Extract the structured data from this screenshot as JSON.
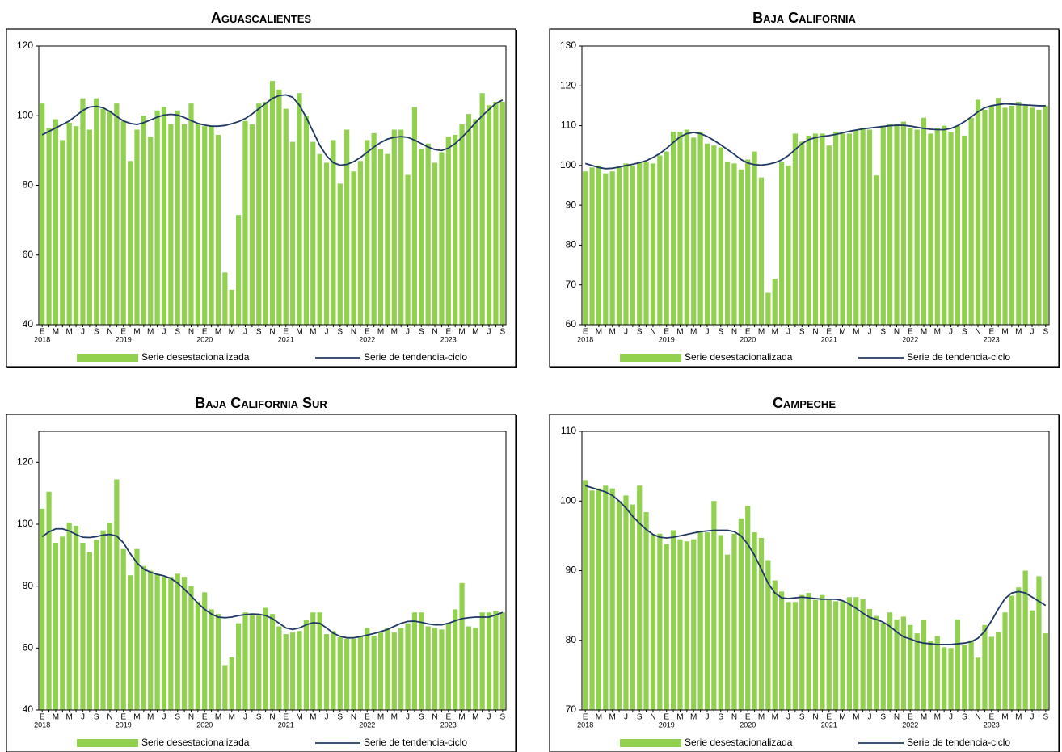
{
  "chart_data": [
    {
      "type": "bar",
      "title": "Aguascalientes",
      "categories": [
        "E",
        null,
        "M",
        null,
        "M",
        null,
        "J",
        null,
        "S",
        null,
        "N",
        null,
        "E",
        null,
        "M",
        null,
        "M",
        null,
        "J",
        null,
        "S",
        null,
        "N",
        null,
        "E",
        null,
        "M",
        null,
        "M",
        null,
        "J",
        null,
        "S",
        null,
        "N",
        null,
        "E",
        null,
        "M",
        null,
        "M",
        null,
        "J",
        null,
        "S",
        null,
        "N",
        null,
        "E",
        null,
        "M",
        null,
        "M",
        null,
        "J",
        null,
        "S",
        null,
        "N",
        null,
        "E",
        null,
        "M",
        null,
        "M",
        null,
        "J",
        null,
        "S"
      ],
      "category_years": [
        "2018",
        null,
        null,
        null,
        null,
        null,
        null,
        null,
        null,
        null,
        null,
        null,
        "2019",
        null,
        null,
        null,
        null,
        null,
        null,
        null,
        null,
        null,
        null,
        null,
        "2020",
        null,
        null,
        null,
        null,
        null,
        null,
        null,
        null,
        null,
        null,
        null,
        "2021",
        null,
        null,
        null,
        null,
        null,
        null,
        null,
        null,
        null,
        null,
        null,
        "2022",
        null,
        null,
        null,
        null,
        null,
        null,
        null,
        null,
        null,
        null,
        null,
        "2023",
        null,
        null,
        null,
        null,
        null,
        null,
        null,
        null
      ],
      "ylim": [
        40,
        120
      ],
      "yticks": [
        40,
        60,
        80,
        100,
        120
      ],
      "series": [
        {
          "name": "Serie desestacionalizada",
          "color": "#92d050",
          "values": [
            103.5,
            96.5,
            99,
            93,
            98,
            97,
            105,
            96,
            105,
            102,
            101.5,
            103.5,
            98.5,
            87,
            96,
            100,
            94,
            101.5,
            102.5,
            97.5,
            101.5,
            97.5,
            103.5,
            97.5,
            97,
            97,
            94.5,
            55,
            50,
            71.5,
            98.5,
            97.5,
            103.5,
            104,
            110,
            107.5,
            102,
            92.5,
            106.5,
            100,
            92.5,
            89,
            86.5,
            93,
            80.5,
            96,
            84,
            87,
            93,
            95,
            90.5,
            89,
            96,
            96,
            83,
            102.5,
            90.5,
            92,
            86.5,
            89.5,
            94,
            94.5,
            97.5,
            100.5,
            99,
            106.5,
            103,
            104,
            104
          ]
        },
        {
          "name": "Serie de tendencia-ciclo",
          "color": "#1f3864",
          "type": "line",
          "values": [
            94.5,
            95.5,
            96.5,
            97.5,
            98.5,
            100,
            101.5,
            102.5,
            102.7,
            102.3,
            101.2,
            99.8,
            98.5,
            97.8,
            97.5,
            98,
            98.8,
            99.6,
            100.2,
            100.4,
            100.2,
            99.5,
            98.6,
            97.8,
            97.3,
            97,
            97,
            97.2,
            97.7,
            98.3,
            99.2,
            100.5,
            102,
            103.5,
            105,
            105.8,
            106,
            105.3,
            103,
            99.5,
            95.5,
            91.5,
            88.5,
            86.5,
            85.8,
            86,
            86.8,
            88,
            89.5,
            91,
            92.3,
            93.3,
            93.8,
            94,
            93.8,
            93,
            92,
            91,
            90.3,
            90,
            90.7,
            92,
            93.8,
            95.8,
            98,
            100,
            101.8,
            103.5,
            104.5
          ]
        }
      ]
    },
    {
      "type": "bar",
      "title": "Baja California",
      "categories": [
        "E",
        null,
        "M",
        null,
        "M",
        null,
        "J",
        null,
        "S",
        null,
        "N",
        null,
        "E",
        null,
        "M",
        null,
        "M",
        null,
        "J",
        null,
        "S",
        null,
        "N",
        null,
        "E",
        null,
        "M",
        null,
        "M",
        null,
        "J",
        null,
        "S",
        null,
        "N",
        null,
        "E",
        null,
        "M",
        null,
        "M",
        null,
        "J",
        null,
        "S",
        null,
        "N",
        null,
        "E",
        null,
        "M",
        null,
        "M",
        null,
        "J",
        null,
        "S",
        null,
        "N",
        null,
        "E",
        null,
        "M",
        null,
        "M",
        null,
        "J",
        null,
        "S"
      ],
      "category_years": [
        "2018",
        null,
        null,
        null,
        null,
        null,
        null,
        null,
        null,
        null,
        null,
        null,
        "2019",
        null,
        null,
        null,
        null,
        null,
        null,
        null,
        null,
        null,
        null,
        null,
        "2020",
        null,
        null,
        null,
        null,
        null,
        null,
        null,
        null,
        null,
        null,
        null,
        "2021",
        null,
        null,
        null,
        null,
        null,
        null,
        null,
        null,
        null,
        null,
        null,
        "2022",
        null,
        null,
        null,
        null,
        null,
        null,
        null,
        null,
        null,
        null,
        null,
        "2023",
        null,
        null,
        null,
        null,
        null,
        null,
        null,
        null
      ],
      "ylim": [
        60,
        130
      ],
      "yticks": [
        60,
        70,
        80,
        90,
        100,
        110,
        120,
        130
      ],
      "series": [
        {
          "name": "Serie desestacionalizada",
          "color": "#92d050",
          "values": [
            98.5,
            99.5,
            100,
            98,
            98.5,
            99.5,
            100.5,
            100,
            101,
            101,
            100.5,
            102.5,
            103.5,
            108.5,
            108.5,
            109,
            107,
            108.5,
            105.5,
            105,
            104.5,
            101,
            100.5,
            99,
            101.5,
            103.5,
            97,
            68,
            71.5,
            101,
            100,
            108,
            106,
            107.5,
            108,
            108,
            105,
            108.5,
            108,
            108,
            109,
            109.5,
            109,
            97.5,
            110,
            110.5,
            110.5,
            111,
            109.5,
            109,
            112,
            108,
            109.5,
            110,
            108.5,
            110,
            107.5,
            112,
            116.5,
            114,
            115,
            117,
            114.5,
            115,
            116,
            115,
            114.5,
            114,
            115
          ]
        },
        {
          "name": "Serie de tendencia-ciclo",
          "color": "#1f3864",
          "type": "line",
          "values": [
            100.5,
            100,
            99.5,
            99.2,
            99.3,
            99.6,
            100,
            100.3,
            100.7,
            101.2,
            102,
            103,
            104.3,
            105.8,
            107.2,
            108,
            108.3,
            108,
            107.3,
            106.3,
            105.2,
            104,
            102.8,
            101.5,
            100.6,
            100.2,
            100.1,
            100.3,
            100.7,
            101.4,
            102.5,
            104,
            105.5,
            106.5,
            107,
            107.3,
            107.5,
            107.8,
            108.2,
            108.6,
            108.9,
            109.2,
            109.4,
            109.6,
            109.8,
            110,
            110.1,
            110.1,
            109.9,
            109.6,
            109.3,
            109.1,
            109,
            109,
            109.3,
            110,
            111,
            112.2,
            113.5,
            114.5,
            115,
            115.3,
            115.5,
            115.4,
            115.3,
            115.2,
            115.1,
            115,
            115
          ]
        }
      ]
    },
    {
      "type": "bar",
      "title": "Baja California Sur",
      "categories": [
        "E",
        null,
        "M",
        null,
        "M",
        null,
        "J",
        null,
        "S",
        null,
        "N",
        null,
        "E",
        null,
        "M",
        null,
        "M",
        null,
        "J",
        null,
        "S",
        null,
        "N",
        null,
        "E",
        null,
        "M",
        null,
        "M",
        null,
        "J",
        null,
        "S",
        null,
        "N",
        null,
        "E",
        null,
        "M",
        null,
        "M",
        null,
        "J",
        null,
        "S",
        null,
        "N",
        null,
        "E",
        null,
        "M",
        null,
        "M",
        null,
        "J",
        null,
        "S",
        null,
        "N",
        null,
        "E",
        null,
        "M",
        null,
        "M",
        null,
        "J",
        null,
        "S"
      ],
      "category_years": [
        "2018",
        null,
        null,
        null,
        null,
        null,
        null,
        null,
        null,
        null,
        null,
        null,
        "2019",
        null,
        null,
        null,
        null,
        null,
        null,
        null,
        null,
        null,
        null,
        null,
        "2020",
        null,
        null,
        null,
        null,
        null,
        null,
        null,
        null,
        null,
        null,
        null,
        "2021",
        null,
        null,
        null,
        null,
        null,
        null,
        null,
        null,
        null,
        null,
        null,
        "2022",
        null,
        null,
        null,
        null,
        null,
        null,
        null,
        null,
        null,
        null,
        null,
        "2023",
        null,
        null,
        null,
        null,
        null,
        null,
        null,
        null
      ],
      "ylim": [
        40,
        130
      ],
      "yticks": [
        40,
        60,
        80,
        100,
        120
      ],
      "series": [
        {
          "name": "Serie desestacionalizada",
          "color": "#92d050",
          "values": [
            105,
            110.5,
            94,
            96,
            100.5,
            99.5,
            94,
            91,
            95,
            98,
            100.5,
            114.5,
            92,
            83.5,
            92,
            86.5,
            85,
            84,
            83,
            83,
            84,
            83,
            80,
            75,
            78,
            72.5,
            71,
            54.5,
            57,
            68,
            71.5,
            70.5,
            70.5,
            73,
            71,
            67,
            64.5,
            65,
            65.5,
            69,
            71.5,
            71.5,
            64.5,
            65.5,
            63.5,
            63,
            63,
            64,
            66.5,
            64,
            65,
            66.5,
            65,
            66.5,
            68,
            71.5,
            71.5,
            67,
            66.5,
            66,
            68,
            72.5,
            81,
            67,
            66.5,
            71.5,
            71.5,
            72,
            71.5
          ]
        },
        {
          "name": "Serie de tendencia-ciclo",
          "color": "#1f3864",
          "type": "line",
          "values": [
            96,
            97.5,
            98.5,
            98.5,
            97.8,
            96.7,
            95.8,
            95.7,
            96,
            96.5,
            96.7,
            96.2,
            94,
            90.5,
            87.5,
            85.5,
            84.5,
            83.8,
            83.3,
            82.5,
            81,
            79,
            76.8,
            74.5,
            72.5,
            71,
            70,
            69.8,
            70,
            70.5,
            70.8,
            71,
            70.9,
            70.5,
            69.5,
            68,
            66.5,
            66,
            66.5,
            67.5,
            68.2,
            68,
            66.5,
            64.8,
            63.8,
            63.3,
            63.3,
            63.7,
            64.2,
            64.7,
            65.3,
            66,
            67,
            68,
            68.6,
            68.7,
            68.3,
            67.8,
            67.5,
            67.5,
            68,
            68.8,
            69.5,
            69.8,
            70,
            70,
            70,
            70.7,
            71.5
          ]
        }
      ]
    },
    {
      "type": "bar",
      "title": "Campeche",
      "categories": [
        "E",
        null,
        "M",
        null,
        "M",
        null,
        "J",
        null,
        "S",
        null,
        "N",
        null,
        "E",
        null,
        "M",
        null,
        "M",
        null,
        "J",
        null,
        "S",
        null,
        "N",
        null,
        "E",
        null,
        "M",
        null,
        "M",
        null,
        "J",
        null,
        "S",
        null,
        "N",
        null,
        "E",
        null,
        "M",
        null,
        "M",
        null,
        "J",
        null,
        "S",
        null,
        "N",
        null,
        "E",
        null,
        "M",
        null,
        "M",
        null,
        "J",
        null,
        "S",
        null,
        "N",
        null,
        "E",
        null,
        "M",
        null,
        "M",
        null,
        "J",
        null,
        "S"
      ],
      "category_years": [
        "2018",
        null,
        null,
        null,
        null,
        null,
        null,
        null,
        null,
        null,
        null,
        null,
        "2019",
        null,
        null,
        null,
        null,
        null,
        null,
        null,
        null,
        null,
        null,
        null,
        "2020",
        null,
        null,
        null,
        null,
        null,
        null,
        null,
        null,
        null,
        null,
        null,
        "2021",
        null,
        null,
        null,
        null,
        null,
        null,
        null,
        null,
        null,
        null,
        null,
        "2022",
        null,
        null,
        null,
        null,
        null,
        null,
        null,
        null,
        null,
        null,
        null,
        "2023",
        null,
        null,
        null,
        null,
        null,
        null,
        null,
        null
      ],
      "ylim": [
        70,
        110
      ],
      "yticks": [
        70,
        80,
        90,
        100,
        110
      ],
      "series": [
        {
          "name": "Serie desestacionalizada",
          "color": "#92d050",
          "values": [
            103,
            101.5,
            101.8,
            102.2,
            101.8,
            100,
            100.8,
            99.5,
            102.2,
            98.4,
            95.2,
            95.3,
            93.8,
            95.8,
            94.5,
            94.2,
            94.5,
            95.7,
            95.5,
            100,
            95.1,
            92.3,
            95.3,
            97.5,
            99.3,
            95.5,
            94.7,
            91.5,
            88.6,
            87,
            85.5,
            85.5,
            86.5,
            86.8,
            85.8,
            86.5,
            85.8,
            85.6,
            85.6,
            86.2,
            86.2,
            85.9,
            84.5,
            83.5,
            82.5,
            84,
            83,
            83.4,
            82.2,
            81,
            82.9,
            79.9,
            80.6,
            79,
            78.9,
            83,
            79.3,
            80,
            77.5,
            82.2,
            80.5,
            81.2,
            84,
            86.4,
            87.6,
            90,
            84.3,
            89.2,
            81
          ]
        },
        {
          "name": "Serie de tendencia-ciclo",
          "color": "#1f3864",
          "type": "line",
          "values": [
            102.2,
            101.9,
            101.6,
            101.3,
            100.8,
            100,
            99,
            97.8,
            96.8,
            95.9,
            95.2,
            94.8,
            94.7,
            94.8,
            95,
            95.2,
            95.4,
            95.6,
            95.7,
            95.8,
            95.8,
            95.8,
            95.6,
            95,
            93.8,
            92.2,
            90.2,
            88.2,
            86.8,
            86.1,
            86,
            86.1,
            86.2,
            86.1,
            86,
            85.9,
            85.9,
            85.9,
            85.7,
            85.2,
            84.6,
            83.9,
            83.3,
            83,
            82.6,
            82,
            81.2,
            80.5,
            80.2,
            79.8,
            79.6,
            79.5,
            79.4,
            79.4,
            79.4,
            79.5,
            79.6,
            79.8,
            80.3,
            81.3,
            82.8,
            84.5,
            86,
            86.8,
            87,
            86.8,
            86.2,
            85.6,
            85
          ]
        }
      ]
    }
  ]
}
